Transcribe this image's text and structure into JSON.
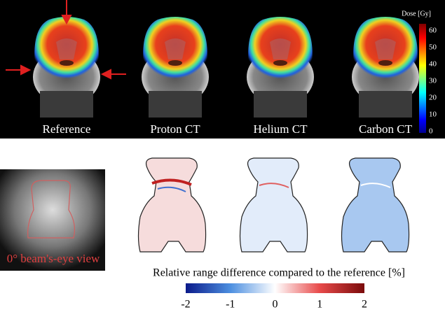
{
  "panels": {
    "labels": [
      "Reference",
      "Proton CT",
      "Helium CT",
      "Carbon CT"
    ]
  },
  "dose_colorbar": {
    "label": "Dose [Gy]",
    "ticks": [
      0,
      10,
      20,
      30,
      40,
      50,
      60
    ]
  },
  "beam_view": {
    "label": "0° beam's-eye view"
  },
  "range_colorbar": {
    "title": "Relative range difference compared to the reference [%]",
    "ticks": [
      -2,
      -1,
      0,
      1,
      2
    ]
  }
}
